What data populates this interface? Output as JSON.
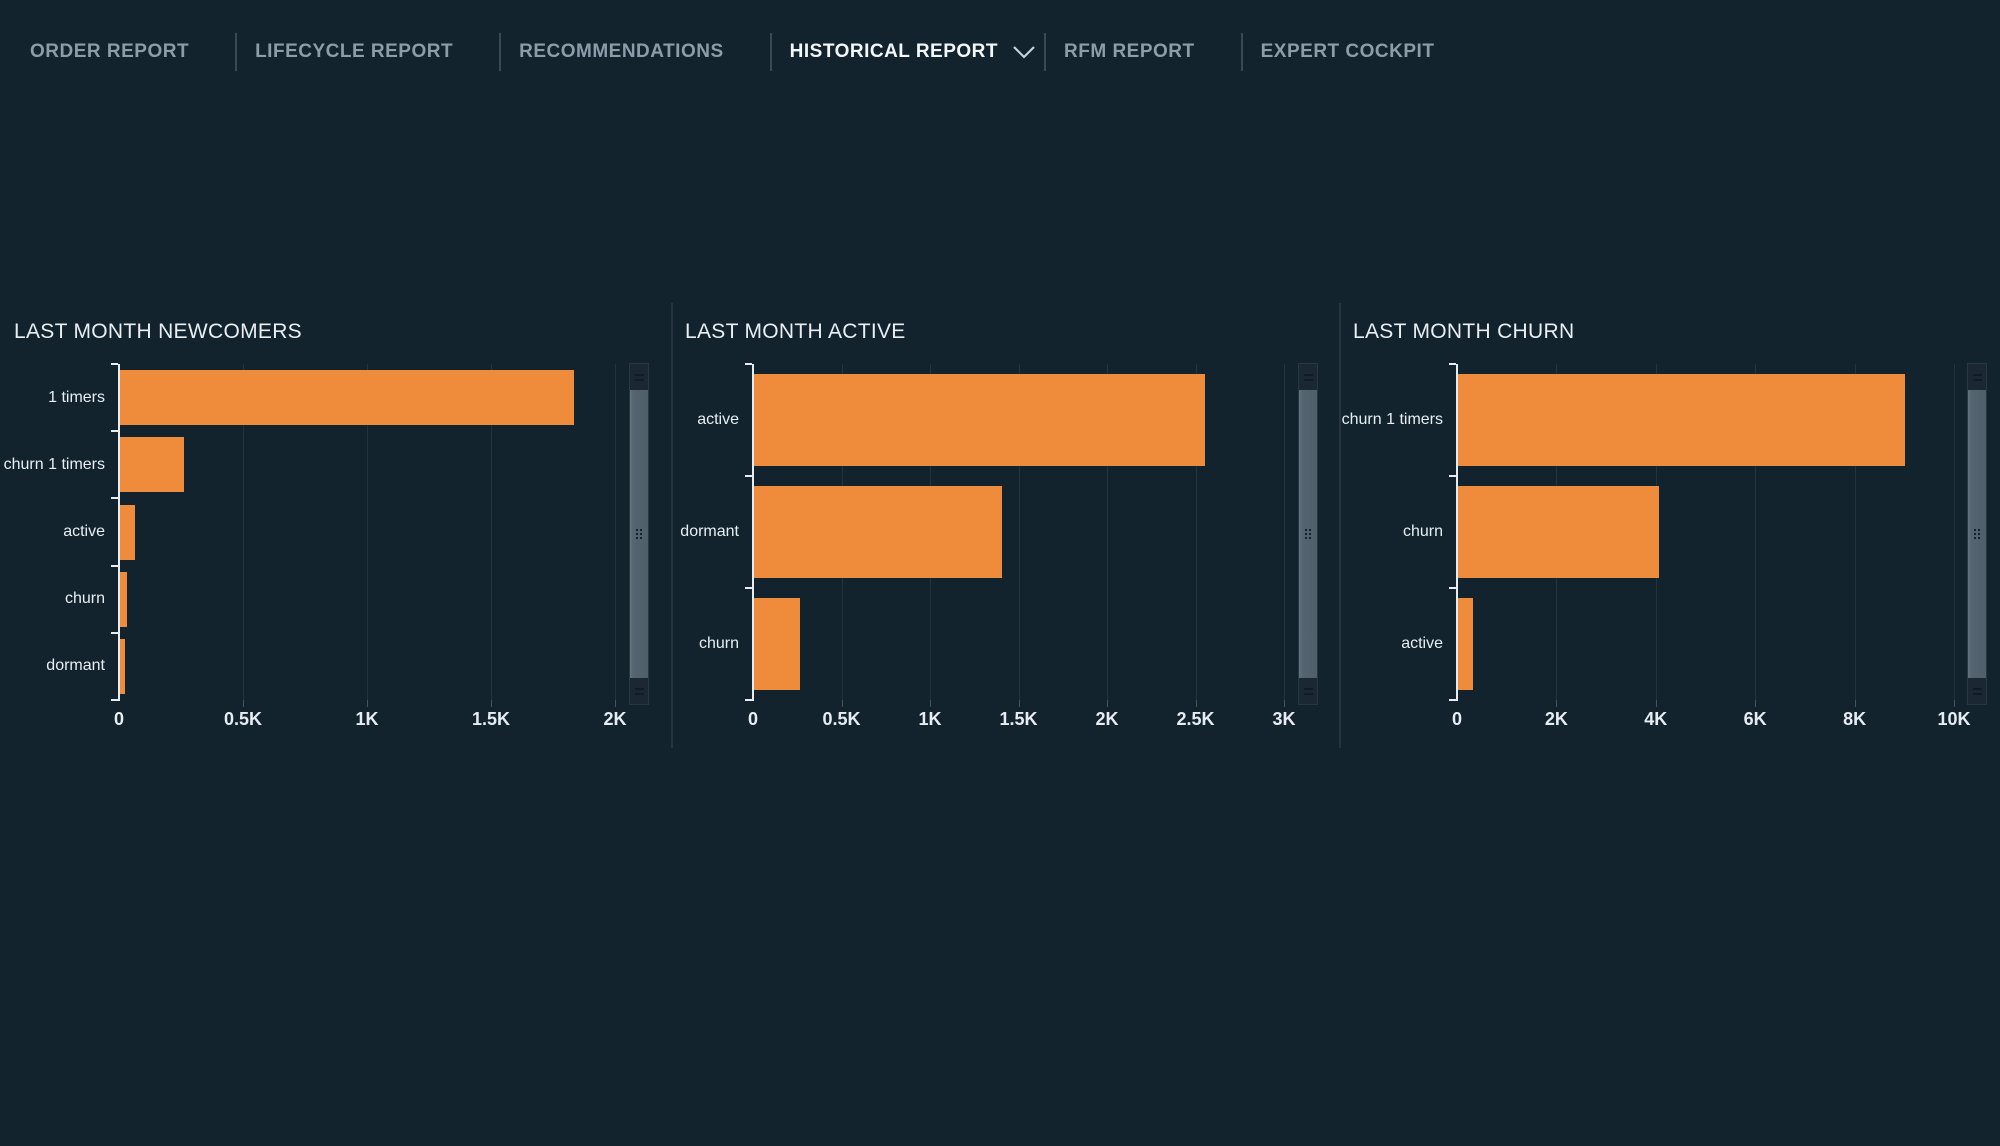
{
  "nav": {
    "items": [
      {
        "label": "ORDER REPORT",
        "active": false
      },
      {
        "label": "LIFECYCLE REPORT",
        "active": false
      },
      {
        "label": "RECOMMENDATIONS",
        "active": false
      },
      {
        "label": "HISTORICAL REPORT",
        "active": true,
        "has_dropdown": true
      },
      {
        "label": "RFM REPORT",
        "active": false
      },
      {
        "label": "EXPERT COCKPIT",
        "active": false
      }
    ]
  },
  "colors": {
    "background": "#12232e",
    "bar": "#ef8c3b",
    "axis": "#e6ecf1",
    "gridline": "#21333f",
    "nav_muted": "#8c9ca9",
    "nav_active": "#f3f7fa"
  },
  "chart_data": [
    {
      "type": "bar",
      "orientation": "horizontal",
      "title": "LAST MONTH NEWCOMERS",
      "categories": [
        "1 timers",
        "churn 1 timers",
        "active",
        "churn",
        "dormant"
      ],
      "values": [
        1830,
        260,
        60,
        30,
        20
      ],
      "xlim": [
        0,
        2000
      ],
      "ticks": [
        {
          "label": "0",
          "value": 0
        },
        {
          "label": "0.5K",
          "value": 500
        },
        {
          "label": "1K",
          "value": 1000
        },
        {
          "label": "1.5K",
          "value": 1500
        },
        {
          "label": "2K",
          "value": 2000
        }
      ],
      "grid": true,
      "legend": "none"
    },
    {
      "type": "bar",
      "orientation": "horizontal",
      "title": "LAST MONTH ACTIVE",
      "categories": [
        "active",
        "dormant",
        "churn"
      ],
      "values": [
        2550,
        1400,
        260
      ],
      "xlim": [
        0,
        3000
      ],
      "ticks": [
        {
          "label": "0",
          "value": 0
        },
        {
          "label": "0.5K",
          "value": 500
        },
        {
          "label": "1K",
          "value": 1000
        },
        {
          "label": "1.5K",
          "value": 1500
        },
        {
          "label": "2K",
          "value": 2000
        },
        {
          "label": "2.5K",
          "value": 2500
        },
        {
          "label": "3K",
          "value": 3000
        }
      ],
      "grid": true,
      "legend": "none"
    },
    {
      "type": "bar",
      "orientation": "horizontal",
      "title": "LAST MONTH CHURN",
      "categories": [
        "churn 1 timers",
        "churn",
        "active"
      ],
      "values": [
        9000,
        4050,
        300
      ],
      "xlim": [
        0,
        10000
      ],
      "ticks": [
        {
          "label": "0",
          "value": 0
        },
        {
          "label": "2K",
          "value": 2000
        },
        {
          "label": "4K",
          "value": 4000
        },
        {
          "label": "6K",
          "value": 6000
        },
        {
          "label": "8K",
          "value": 8000
        },
        {
          "label": "10K",
          "value": 10000
        }
      ],
      "grid": true,
      "legend": "none"
    }
  ]
}
